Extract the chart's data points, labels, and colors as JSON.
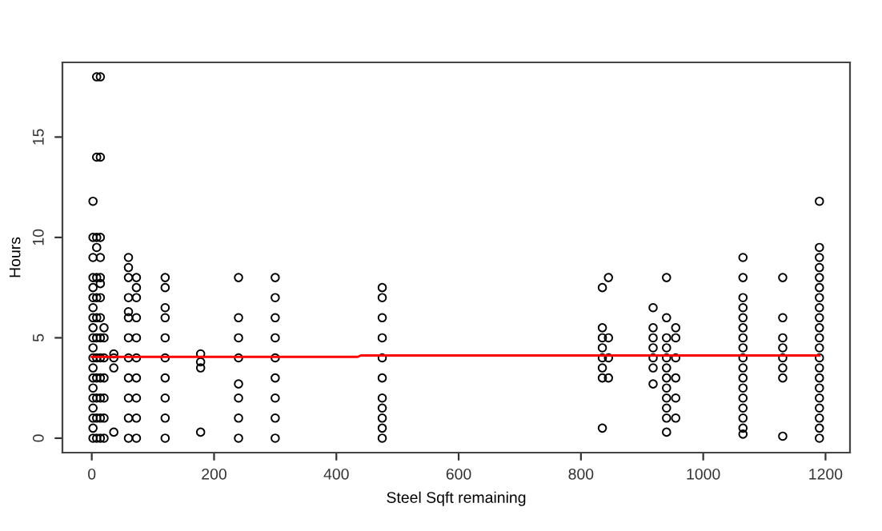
{
  "chart_data": {
    "type": "scatter",
    "xlabel": "Steel Sqft remaining",
    "ylabel": "Hours",
    "xlim": [
      -48,
      1240
    ],
    "ylim": [
      -0.72,
      18.72
    ],
    "xticks": [
      0,
      200,
      400,
      600,
      800,
      1000,
      1200
    ],
    "yticks": [
      0,
      5,
      10,
      15
    ],
    "grid": false,
    "marker": "circle",
    "legend": false,
    "series": [
      {
        "color": "#000000",
        "x": [
          2,
          2,
          2,
          2,
          2,
          2,
          2,
          2,
          2,
          2,
          2,
          2,
          2,
          2,
          2,
          2,
          2,
          2,
          2,
          2,
          8,
          8,
          8,
          8,
          8,
          8,
          8,
          8,
          8,
          8,
          8,
          8,
          8,
          14,
          14,
          14,
          14,
          14,
          14,
          14,
          14,
          14,
          14,
          14,
          14,
          14,
          14,
          20,
          20,
          20,
          20,
          20,
          20,
          20,
          36,
          36,
          36,
          36,
          60,
          60,
          60,
          60,
          60,
          60,
          60,
          60,
          60,
          60,
          60,
          60,
          73,
          73,
          73,
          73,
          73,
          73,
          73,
          73,
          73,
          73,
          120,
          120,
          120,
          120,
          120,
          120,
          120,
          120,
          120,
          120,
          178,
          178,
          178,
          178,
          240,
          240,
          240,
          240,
          240,
          240,
          240,
          240,
          300,
          300,
          300,
          300,
          300,
          300,
          300,
          300,
          300,
          475,
          475,
          475,
          475,
          475,
          475,
          475,
          475,
          475,
          475,
          475,
          835,
          835,
          835,
          835,
          835,
          835,
          835,
          835,
          845,
          845,
          845,
          845,
          918,
          918,
          918,
          918,
          918,
          918,
          918,
          940,
          940,
          940,
          940,
          940,
          940,
          940,
          940,
          940,
          940,
          940,
          940,
          955,
          955,
          955,
          955,
          955,
          955,
          1065,
          1065,
          1065,
          1065,
          1065,
          1065,
          1065,
          1065,
          1065,
          1065,
          1065,
          1065,
          1065,
          1065,
          1065,
          1065,
          1065,
          1130,
          1130,
          1130,
          1130,
          1130,
          1130,
          1130,
          1130,
          1190,
          1190,
          1190,
          1190,
          1190,
          1190,
          1190,
          1190,
          1190,
          1190,
          1190,
          1190,
          1190,
          1190,
          1190,
          1190,
          1190,
          1190,
          1190,
          1190,
          1190
        ],
        "values": [
          0,
          0.5,
          1,
          1.5,
          2,
          2.5,
          3,
          3.5,
          4,
          4.5,
          5,
          5.5,
          6,
          6.5,
          7,
          7.5,
          8,
          9,
          10,
          11.8,
          0,
          1,
          2,
          3,
          4,
          5,
          6,
          7,
          8,
          9.5,
          10,
          14,
          18,
          0,
          1,
          2,
          3,
          4,
          5,
          6,
          7,
          7.7,
          8,
          9,
          10,
          14,
          18,
          0,
          1,
          2,
          3,
          4,
          5,
          5.5,
          0.3,
          3.5,
          4,
          4.2,
          0,
          1,
          2,
          3,
          4,
          5,
          6,
          6.3,
          7,
          8,
          8.5,
          9,
          0,
          1,
          2,
          3,
          4,
          5,
          6,
          7,
          7.5,
          8,
          0,
          1,
          2,
          3,
          4,
          5,
          6,
          6.5,
          7.5,
          8,
          0.3,
          3.5,
          3.8,
          4.2,
          0,
          1,
          2,
          2.7,
          4,
          5,
          6,
          8,
          0,
          1,
          2,
          3,
          4,
          5,
          6,
          7,
          8,
          0,
          0.5,
          1,
          1.5,
          2,
          3,
          4,
          5,
          6,
          7,
          7.5,
          0.5,
          3,
          3.5,
          4,
          4.5,
          5,
          5.5,
          7.5,
          3,
          4,
          5,
          8,
          2.7,
          3.5,
          4,
          4.5,
          5,
          5.5,
          6.5,
          0.3,
          1,
          1.5,
          2,
          2.5,
          3,
          3.5,
          4,
          4.5,
          5,
          6,
          8,
          1,
          2,
          3,
          4,
          5,
          5.5,
          0.2,
          0.5,
          1,
          1.5,
          2,
          2.5,
          3,
          3.5,
          4,
          4.5,
          5,
          5.5,
          6,
          6.5,
          7,
          8,
          9,
          0.1,
          3,
          3.5,
          4,
          4.5,
          5,
          6,
          8,
          0,
          0.5,
          1,
          1.5,
          2,
          2.5,
          3,
          3.5,
          4,
          4.5,
          5,
          5.5,
          6,
          6.5,
          7,
          7.5,
          8,
          8.5,
          9,
          9.5,
          11.8
        ]
      },
      {
        "type": "line",
        "color": "#ff0000",
        "marker": "none",
        "x": [
          0,
          435,
          440,
          1190
        ],
        "values": [
          4.05,
          4.05,
          4.12,
          4.12
        ]
      }
    ]
  }
}
